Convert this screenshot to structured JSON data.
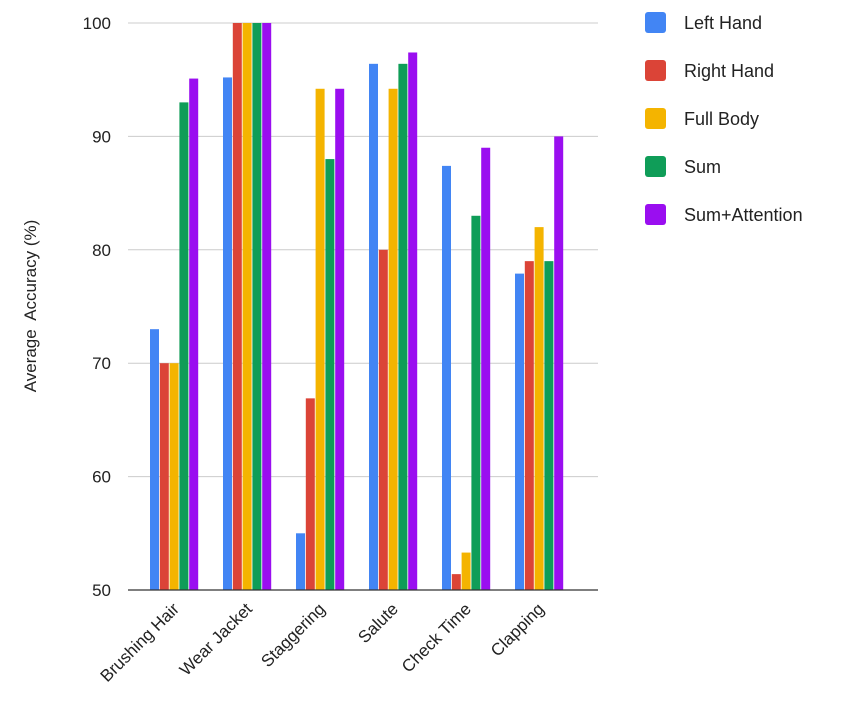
{
  "chart_data": {
    "type": "bar",
    "ylabel": "Average  Accuracy (%)",
    "xlabel": "",
    "ylim": [
      50,
      100
    ],
    "yticks": [
      50,
      60,
      70,
      80,
      90,
      100
    ],
    "grid": true,
    "legend_position": "top-right",
    "categories": [
      "Brushing Hair",
      "Wear Jacket",
      "Staggering",
      "Salute",
      "Check Time",
      "Clapping"
    ],
    "series": [
      {
        "name": "Left Hand",
        "color": "#4285f4",
        "values": [
          73,
          95.2,
          55,
          96.4,
          87.4,
          77.9
        ]
      },
      {
        "name": "Right Hand",
        "color": "#db4437",
        "values": [
          70,
          100,
          66.9,
          80,
          51.4,
          79
        ]
      },
      {
        "name": "Full Body",
        "color": "#f4b400",
        "values": [
          70,
          100,
          94.2,
          94.2,
          53.3,
          82
        ]
      },
      {
        "name": "Sum",
        "color": "#0f9d58",
        "values": [
          93,
          100,
          88,
          96.4,
          83,
          79
        ]
      },
      {
        "name": "Sum+Attention",
        "color": "#9a0ef0",
        "values": [
          95.1,
          100,
          94.2,
          97.4,
          89,
          90
        ]
      }
    ]
  }
}
